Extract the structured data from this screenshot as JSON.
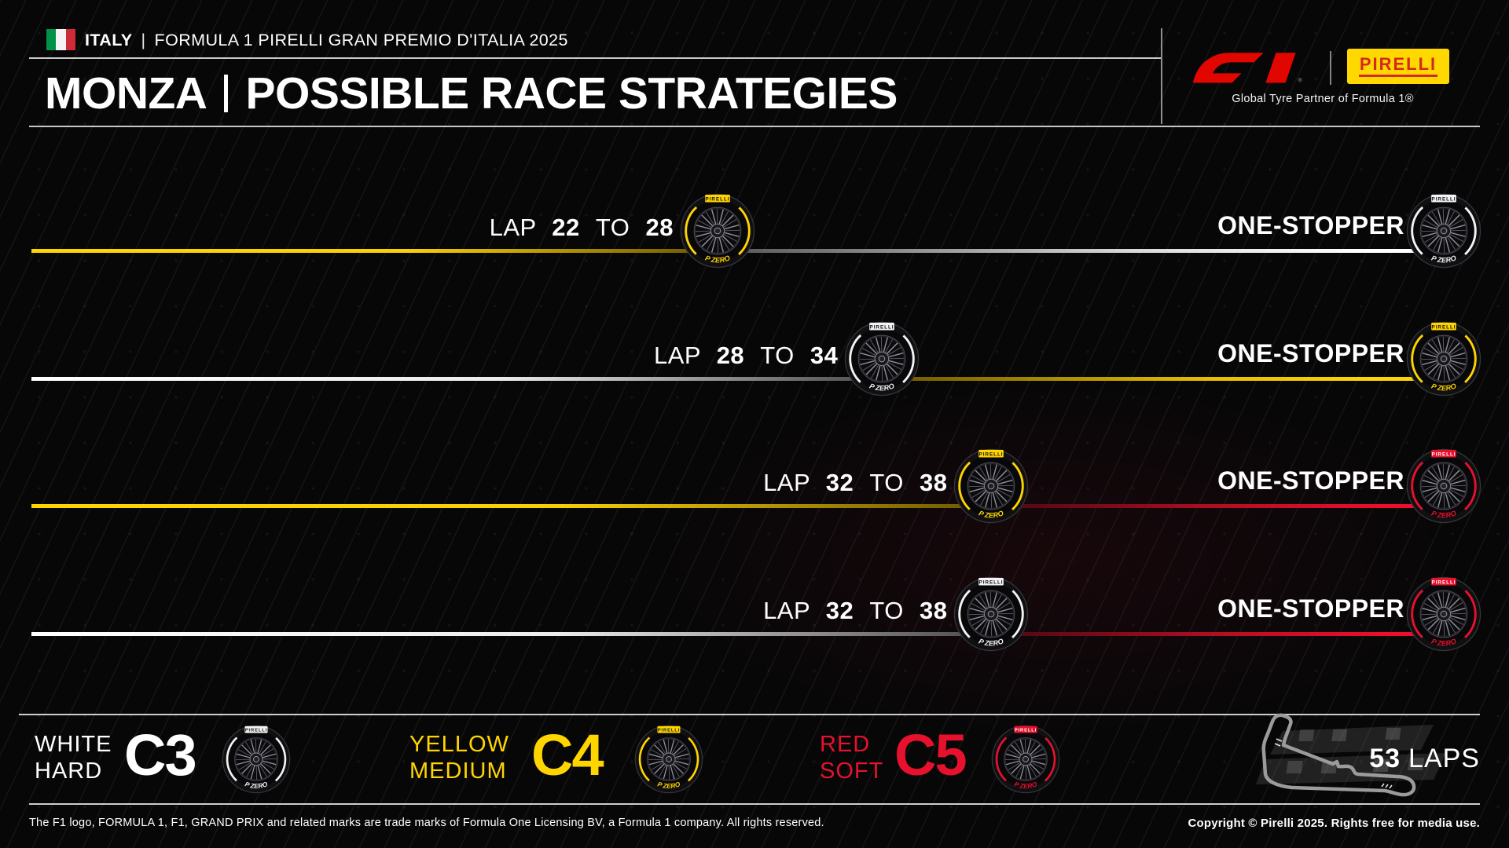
{
  "header": {
    "country": "ITALY",
    "separator": "|",
    "event_title": "FORMULA 1 PIRELLI GRAN PREMIO D'ITALIA 2025"
  },
  "title": {
    "circuit": "MONZA",
    "label": "POSSIBLE RACE STRATEGIES"
  },
  "logos": {
    "pirelli_text": "PIRELLI",
    "partner_line": "Global Tyre Partner of Formula 1®",
    "f1_registered": "®"
  },
  "strategies": [
    {
      "lap_word": "LAP",
      "from": "22",
      "to_word": "TO",
      "to": "28",
      "label": "ONE-STOPPER",
      "stint1": "medium",
      "stint2": "hard",
      "pit_pct": 49.6
    },
    {
      "lap_word": "LAP",
      "from": "28",
      "to_word": "TO",
      "to": "34",
      "label": "ONE-STOPPER",
      "stint1": "hard",
      "stint2": "medium",
      "pit_pct": 61.5
    },
    {
      "lap_word": "LAP",
      "from": "32",
      "to_word": "TO",
      "to": "38",
      "label": "ONE-STOPPER",
      "stint1": "medium",
      "stint2": "soft",
      "pit_pct": 69.4
    },
    {
      "lap_word": "LAP",
      "from": "32",
      "to_word": "TO",
      "to": "38",
      "label": "ONE-STOPPER",
      "stint1": "hard",
      "stint2": "soft",
      "pit_pct": 69.4
    }
  ],
  "legend": {
    "items": [
      {
        "color_word": "WHITE",
        "compound_word": "HARD",
        "code": "C3",
        "compound": "hard"
      },
      {
        "color_word": "YELLOW",
        "compound_word": "MEDIUM",
        "code": "C4",
        "compound": "medium"
      },
      {
        "color_word": "RED",
        "compound_word": "SOFT",
        "code": "C5",
        "compound": "soft"
      }
    ],
    "laps_number": "53",
    "laps_word": "LAPS"
  },
  "footer": {
    "left": "The F1 logo, FORMULA 1, F1, GRAND PRIX and related marks are trade marks of Formula One Licensing BV, a Formula 1 company. All rights reserved.",
    "right": "Copyright © Pirelli 2025. Rights free for media use."
  },
  "tyre_branding": {
    "top_label": "PIRELLI",
    "bottom_label": "P ZERO"
  },
  "colors": {
    "hard": "#f4f4f4",
    "medium": "#ffd500",
    "soft": "#e8112d",
    "f1_red": "#e10600",
    "pirelli_yellow": "#ffd800",
    "pirelli_red": "#d5281e"
  },
  "chart_data": {
    "type": "bar",
    "orientation": "horizontal-timeline",
    "title": "MONZA | POSSIBLE RACE STRATEGIES",
    "total_laps": 53,
    "rows": [
      {
        "strategy": "ONE-STOPPER",
        "stint1_compound": "medium",
        "pit_window_laps": [
          22,
          28
        ],
        "stint2_compound": "hard"
      },
      {
        "strategy": "ONE-STOPPER",
        "stint1_compound": "hard",
        "pit_window_laps": [
          28,
          34
        ],
        "stint2_compound": "medium"
      },
      {
        "strategy": "ONE-STOPPER",
        "stint1_compound": "medium",
        "pit_window_laps": [
          32,
          38
        ],
        "stint2_compound": "soft"
      },
      {
        "strategy": "ONE-STOPPER",
        "stint1_compound": "hard",
        "pit_window_laps": [
          32,
          38
        ],
        "stint2_compound": "soft"
      }
    ],
    "compounds": [
      {
        "code": "C3",
        "name": "HARD",
        "color_name": "WHITE",
        "color": "#f4f4f4"
      },
      {
        "code": "C4",
        "name": "MEDIUM",
        "color_name": "YELLOW",
        "color": "#ffd500"
      },
      {
        "code": "C5",
        "name": "SOFT",
        "color_name": "RED",
        "color": "#e8112d"
      }
    ],
    "legend_position": "bottom",
    "grid": false
  }
}
